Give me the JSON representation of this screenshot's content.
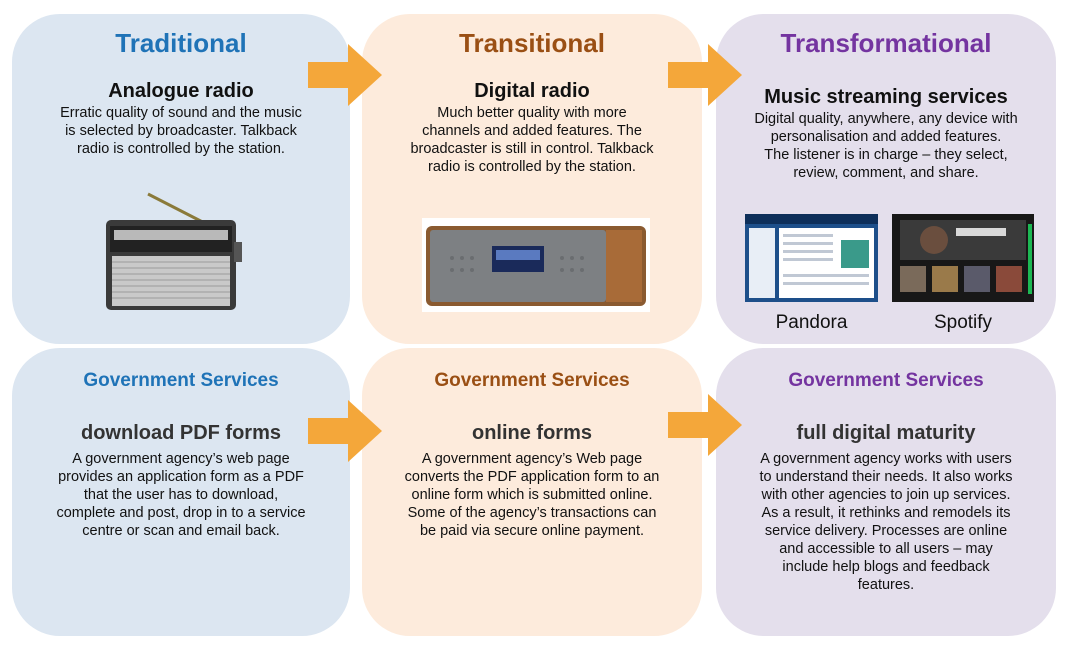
{
  "columns": [
    {
      "stage": "Traditional",
      "top_title": "Analogue radio",
      "top_body": [
        "Erratic quality of sound and the music",
        "is selected by broadcaster. Talkback",
        "radio is controlled by the station."
      ],
      "gov_title": "Government Services",
      "bottom_title": "download PDF forms",
      "bottom_body": [
        "A government agency’s web page",
        "provides an application form as a PDF",
        "that the user has to download,",
        "complete and post, drop in to a service",
        "centre or scan and email back."
      ]
    },
    {
      "stage": "Transitional",
      "top_title": "Digital radio",
      "top_body": [
        "Much better quality with more",
        "channels and added features. The",
        "broadcaster is still in control. Talkback",
        "radio is controlled by the station."
      ],
      "gov_title": "Government Services",
      "bottom_title": "online forms",
      "bottom_body": [
        "A government agency’s Web page",
        "converts the PDF application form to an",
        "online form which is submitted online.",
        "Some of the agency’s transactions can",
        "be paid via secure online payment."
      ]
    },
    {
      "stage": "Transformational",
      "top_title": "Music streaming services",
      "top_body": [
        "Digital quality, anywhere, any device with",
        "personalisation and added features.",
        "The listener is in charge – they select,",
        "review, comment, and share."
      ],
      "services": [
        "Pandora",
        "Spotify"
      ],
      "gov_title": "Government Services",
      "bottom_title": "full digital maturity",
      "bottom_body": [
        "A government agency works with users",
        "to understand their needs. It also works",
        "with other agencies to join up services.",
        "As a result, it rethinks and remodels its",
        "service delivery. Processes are online",
        "and accessible to all users – may",
        "include help blogs and feedback",
        "features."
      ]
    }
  ],
  "colors": {
    "traditional": "#1f73b7",
    "transitional": "#9a4f14",
    "transformational": "#7434a0",
    "arrow": "#f4a73a"
  },
  "icons": [
    "analogue-radio-illustration",
    "digital-radio-illustration",
    "pandora-screenshot-illustration",
    "spotify-screenshot-illustration"
  ]
}
